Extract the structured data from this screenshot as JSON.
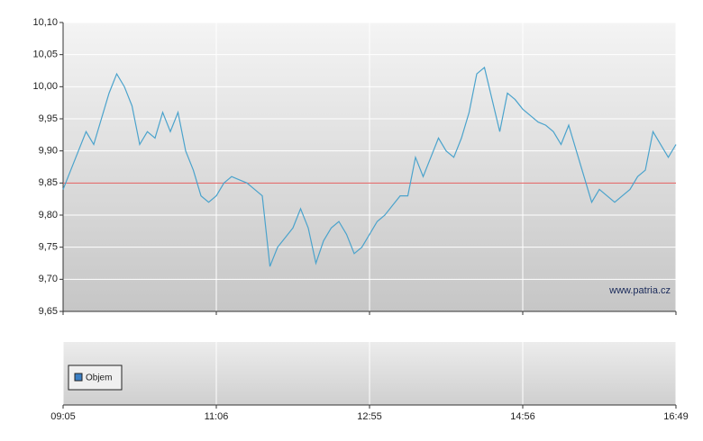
{
  "chart_data": {
    "type": "line",
    "categories": [
      "09:05",
      null,
      null,
      null,
      null,
      null,
      null,
      null,
      null,
      null,
      null,
      null,
      null,
      null,
      null,
      null,
      null,
      null,
      null,
      null,
      "11:06",
      null,
      null,
      null,
      null,
      null,
      null,
      null,
      null,
      null,
      null,
      null,
      null,
      null,
      null,
      null,
      null,
      null,
      null,
      null,
      "12:55",
      null,
      null,
      null,
      null,
      null,
      null,
      null,
      null,
      null,
      null,
      null,
      null,
      null,
      null,
      null,
      null,
      null,
      null,
      null,
      "14:56",
      null,
      null,
      null,
      null,
      null,
      null,
      null,
      null,
      null,
      null,
      null,
      null,
      null,
      null,
      null,
      null,
      null,
      null,
      null,
      "16:49"
    ],
    "series": [
      {
        "color": "#4ba3cc",
        "values": [
          9.84,
          9.87,
          9.9,
          9.93,
          9.91,
          9.95,
          9.99,
          10.02,
          10.0,
          9.97,
          9.91,
          9.93,
          9.92,
          9.96,
          9.93,
          9.96,
          9.9,
          9.87,
          9.83,
          9.82,
          9.83,
          9.85,
          9.86,
          9.855,
          9.85,
          9.84,
          9.83,
          9.72,
          9.75,
          9.765,
          9.78,
          9.81,
          9.78,
          9.725,
          9.76,
          9.78,
          9.79,
          9.77,
          9.74,
          9.75,
          9.77,
          9.79,
          9.8,
          9.815,
          9.83,
          9.83,
          9.89,
          9.86,
          9.89,
          9.92,
          9.9,
          9.89,
          9.92,
          9.96,
          10.02,
          10.03,
          9.98,
          9.93,
          9.99,
          9.98,
          9.965,
          9.955,
          9.945,
          9.94,
          9.93,
          9.91,
          9.94,
          9.9,
          9.86,
          9.82,
          9.84,
          9.83,
          9.82,
          9.83,
          9.84,
          9.86,
          9.87,
          9.93,
          9.91,
          9.89,
          9.91
        ]
      }
    ],
    "ylim": [
      9.65,
      10.1
    ],
    "yticks": [
      {
        "value": 9.65,
        "label": "9,65"
      },
      {
        "value": 9.7,
        "label": "9,70"
      },
      {
        "value": 9.75,
        "label": "9,75"
      },
      {
        "value": 9.8,
        "label": "9,80"
      },
      {
        "value": 9.85,
        "label": "9,85"
      },
      {
        "value": 9.9,
        "label": "9,90"
      },
      {
        "value": 9.95,
        "label": "9,95"
      },
      {
        "value": 10.0,
        "label": "10,00"
      },
      {
        "value": 10.05,
        "label": "10,05"
      },
      {
        "value": 10.1,
        "label": "10,10"
      }
    ],
    "reference_line": {
      "value": 9.85,
      "color": "#e05a5a"
    },
    "grid": true,
    "annotation": "www.patria.cz",
    "volume": {
      "name": "Objem",
      "color": "#3b7fc4"
    }
  }
}
